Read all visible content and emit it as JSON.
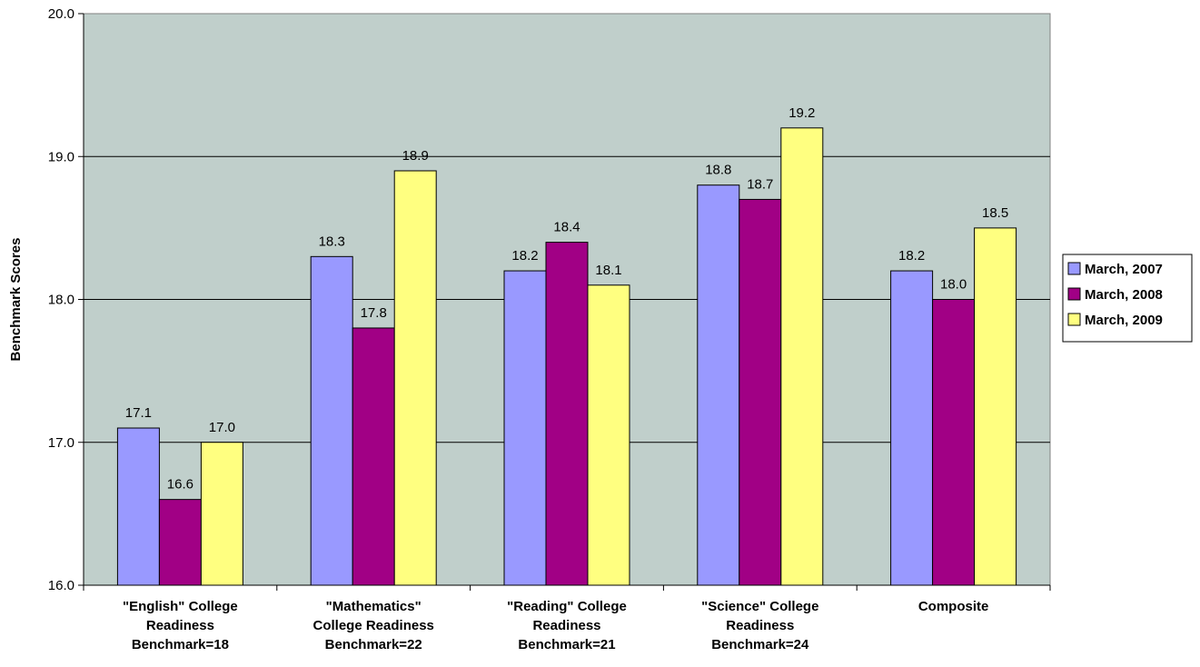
{
  "chart_data": {
    "type": "bar",
    "title": "",
    "xlabel": "",
    "ylabel": "Benchmark Scores",
    "ylim": [
      16.0,
      20.0
    ],
    "yticks": [
      "16.0",
      "17.0",
      "18.0",
      "19.0",
      "20.0"
    ],
    "grid": true,
    "legend_position": "right",
    "plot_background": "#C0CFCB",
    "categories": [
      [
        "\"English\" College",
        "Readiness",
        "Benchmark=18"
      ],
      [
        "\"Mathematics\"",
        "College Readiness",
        "Benchmark=22"
      ],
      [
        "\"Reading\" College",
        "Readiness",
        "Benchmark=21"
      ],
      [
        "\"Science\" College",
        "Readiness",
        "Benchmark=24"
      ],
      [
        "Composite"
      ]
    ],
    "series": [
      {
        "name": "March, 2007",
        "color": "#9999FF",
        "values": [
          17.1,
          18.3,
          18.2,
          18.8,
          18.2
        ]
      },
      {
        "name": "March, 2008",
        "color": "#A10085",
        "values": [
          16.6,
          17.8,
          18.4,
          18.7,
          18.0
        ]
      },
      {
        "name": "March, 2009",
        "color": "#FFFF80",
        "values": [
          17.0,
          18.9,
          18.1,
          19.2,
          18.5
        ]
      }
    ]
  }
}
